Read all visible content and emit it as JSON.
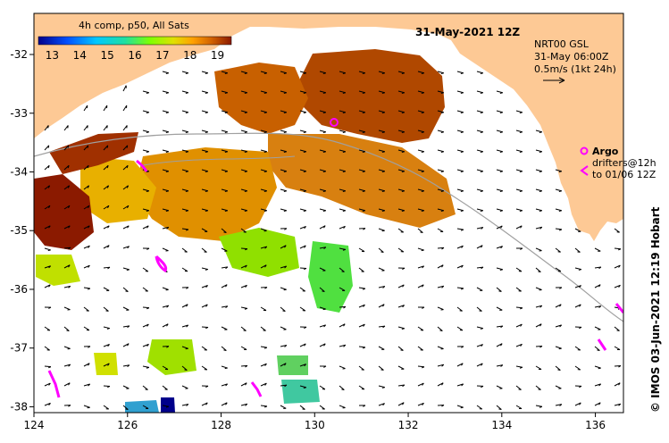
{
  "chart_data": {
    "type": "heatmap",
    "title": "31-May-2021 12Z",
    "product": "4h comp, p50, All Sats",
    "colorbar": {
      "ticks": [
        "13",
        "14",
        "15",
        "16",
        "17",
        "18",
        "19"
      ],
      "range": [
        12.5,
        19.5
      ],
      "colors": [
        "#00008b",
        "#0050ff",
        "#00c8ff",
        "#20e0a0",
        "#80ff00",
        "#e0e000",
        "#ffa000",
        "#d06000",
        "#8b1a00"
      ]
    },
    "x_axis": {
      "ticks": [
        "124",
        "126",
        "128",
        "130",
        "132",
        "134",
        "136"
      ],
      "range": [
        124,
        136.6
      ]
    },
    "y_axis": {
      "ticks": [
        "-32",
        "-33",
        "-34",
        "-35",
        "-36",
        "-37",
        "-38"
      ],
      "range": [
        -38.1,
        -31.3
      ]
    },
    "current_legend": {
      "source": "NRT00 GSL",
      "time": "31-May 06:00Z",
      "scale": "0.5m/s (1kt 24h)"
    },
    "drifter_legend": {
      "argo": "Argo",
      "drifters": "drifters@12h",
      "to": "to 01/06 12Z"
    },
    "credit": "©  IMOS 03-Jun-2021 12:19 Hobart",
    "colors": {
      "land": "#fdc995",
      "cloud": "#ffffff",
      "drifter": "#ff00ff",
      "contour": "#a0a0a0"
    }
  }
}
